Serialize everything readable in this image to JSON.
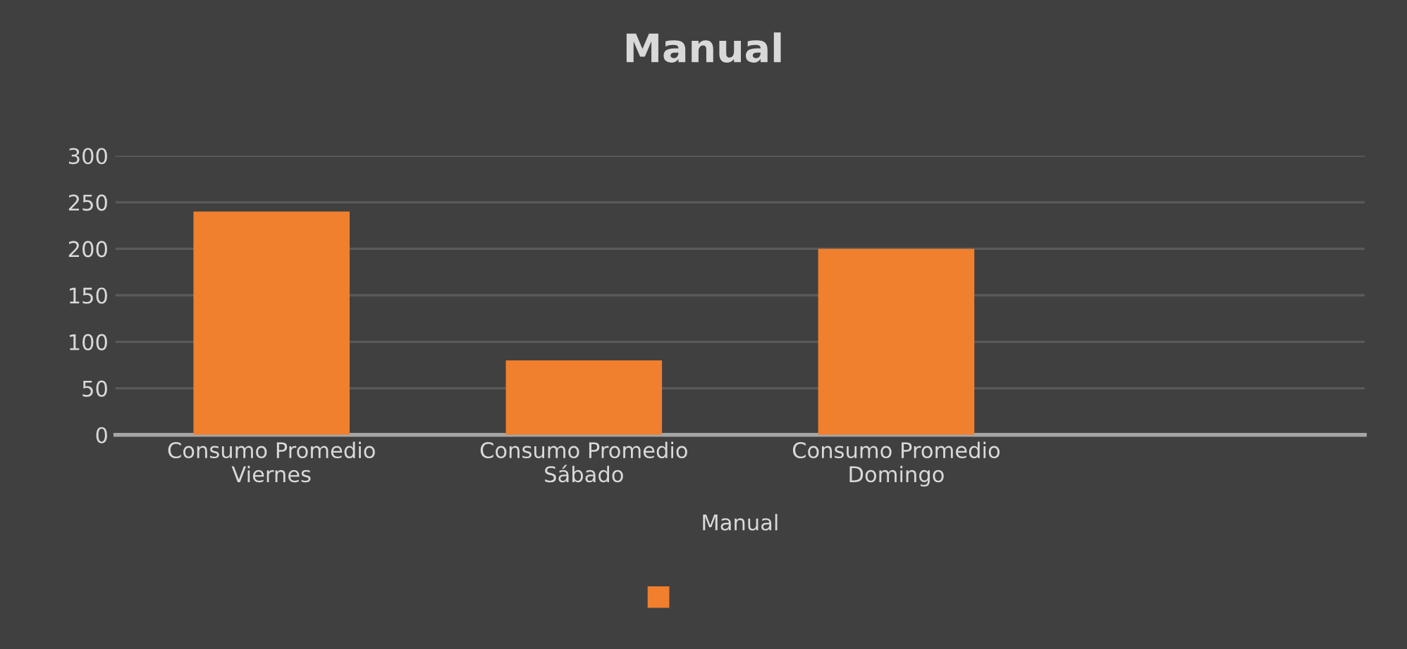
{
  "chart_data": {
    "type": "bar",
    "title": "Manual",
    "xlabel": "Manual",
    "categories": [
      "Consumo Promedio\nViernes",
      "Consumo Promedio\nSábado",
      "Consumo Promedio\nDomingo",
      null
    ],
    "series": [
      {
        "color": "#f07f2e",
        "values": [
          240,
          80,
          200,
          null
        ]
      }
    ],
    "ylim": [
      0,
      300
    ],
    "yticks": [
      0,
      50,
      100,
      150,
      200,
      250,
      300
    ],
    "grid": "y"
  }
}
